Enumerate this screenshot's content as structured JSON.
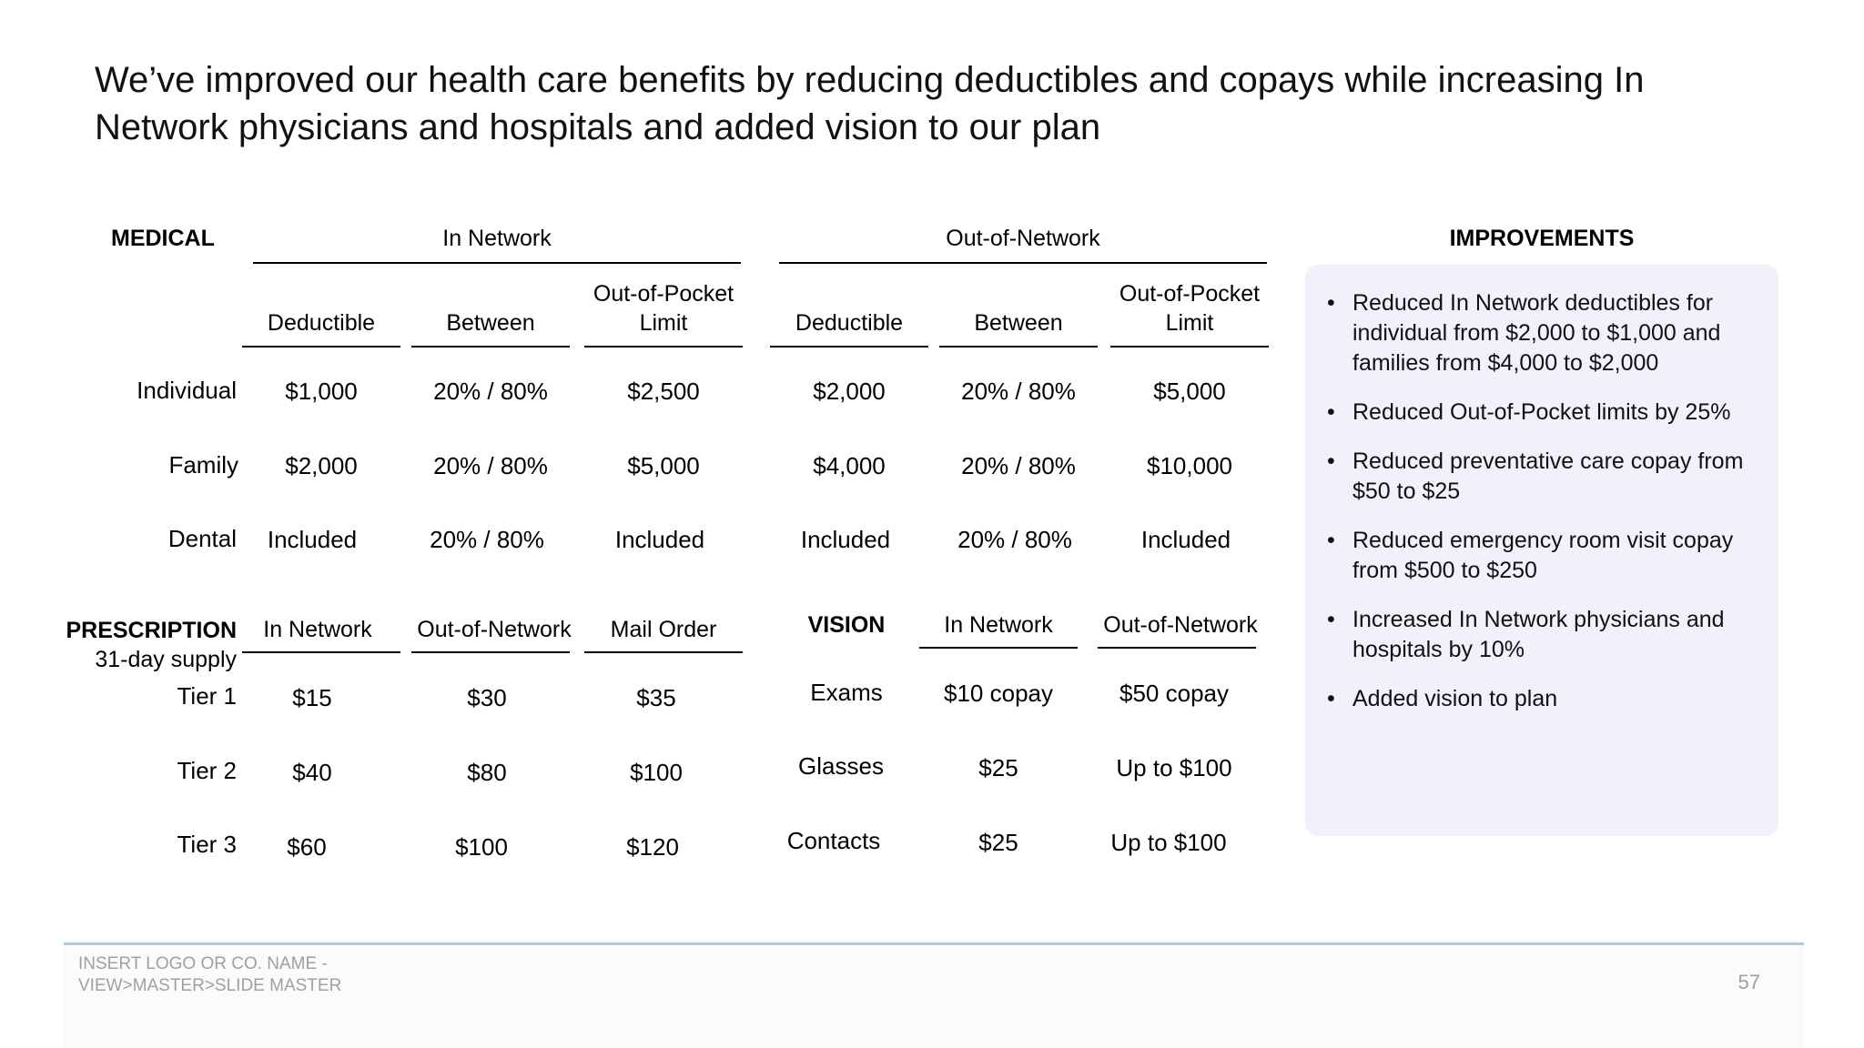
{
  "title": "We’ve improved our health care benefits by reducing deductibles and copays while increasing In Network physicians and hospitals and added vision to our plan",
  "medical": {
    "section_label": "MEDICAL",
    "group_headers": [
      "In Network",
      "Out-of-Network"
    ],
    "columns": [
      "Deductible",
      "Between",
      "Out-of-Pocket Limit",
      "Deductible",
      "Between",
      "Out-of-Pocket Limit"
    ],
    "rows": [
      {
        "label": "Individual",
        "values": [
          "$1,000",
          "20% / 80%",
          "$2,500",
          "$2,000",
          "20% / 80%",
          "$5,000"
        ]
      },
      {
        "label": "Family",
        "values": [
          "$2,000",
          "20% / 80%",
          "$5,000",
          "$4,000",
          "20% / 80%",
          "$10,000"
        ]
      },
      {
        "label": "Dental",
        "values": [
          "Included",
          "20% / 80%",
          "Included",
          "Included",
          "20% / 80%",
          "Included"
        ]
      }
    ]
  },
  "prescription": {
    "section_label": "PRESCRIPTION",
    "sub_label": "31-day supply",
    "columns": [
      "In Network",
      "Out-of-Network",
      "Mail Order"
    ],
    "rows": [
      {
        "label": "Tier 1",
        "values": [
          "$15",
          "$30",
          "$35"
        ]
      },
      {
        "label": "Tier 2",
        "values": [
          "$40",
          "$80",
          "$100"
        ]
      },
      {
        "label": "Tier 3",
        "values": [
          "$60",
          "$100",
          "$120"
        ]
      }
    ]
  },
  "vision": {
    "section_label": "VISION",
    "columns": [
      "In Network",
      "Out-of-Network"
    ],
    "rows": [
      {
        "label": "Exams",
        "values": [
          "$10 copay",
          "$50 copay"
        ]
      },
      {
        "label": "Glasses",
        "values": [
          "$25",
          "Up to $100"
        ]
      },
      {
        "label": "Contacts",
        "values": [
          "$25",
          "Up to $100"
        ]
      }
    ]
  },
  "improvements": {
    "heading": "IMPROVEMENTS",
    "items": [
      "Reduced In Network deductibles for individual from $2,000 to $1,000 and families from $4,000 to $2,000",
      "Reduced Out-of-Pocket limits by 25%",
      "Reduced preventative care copay from $50 to $25",
      "Reduced emergency room visit copay from $500 to $250",
      "Increased In Network physicians and hospitals by 10%",
      "Added vision to plan"
    ]
  },
  "footer": {
    "logo_line1": "INSERT LOGO OR CO. NAME -",
    "logo_line2": "VIEW>MASTER>SLIDE MASTER",
    "page_number": "57"
  }
}
